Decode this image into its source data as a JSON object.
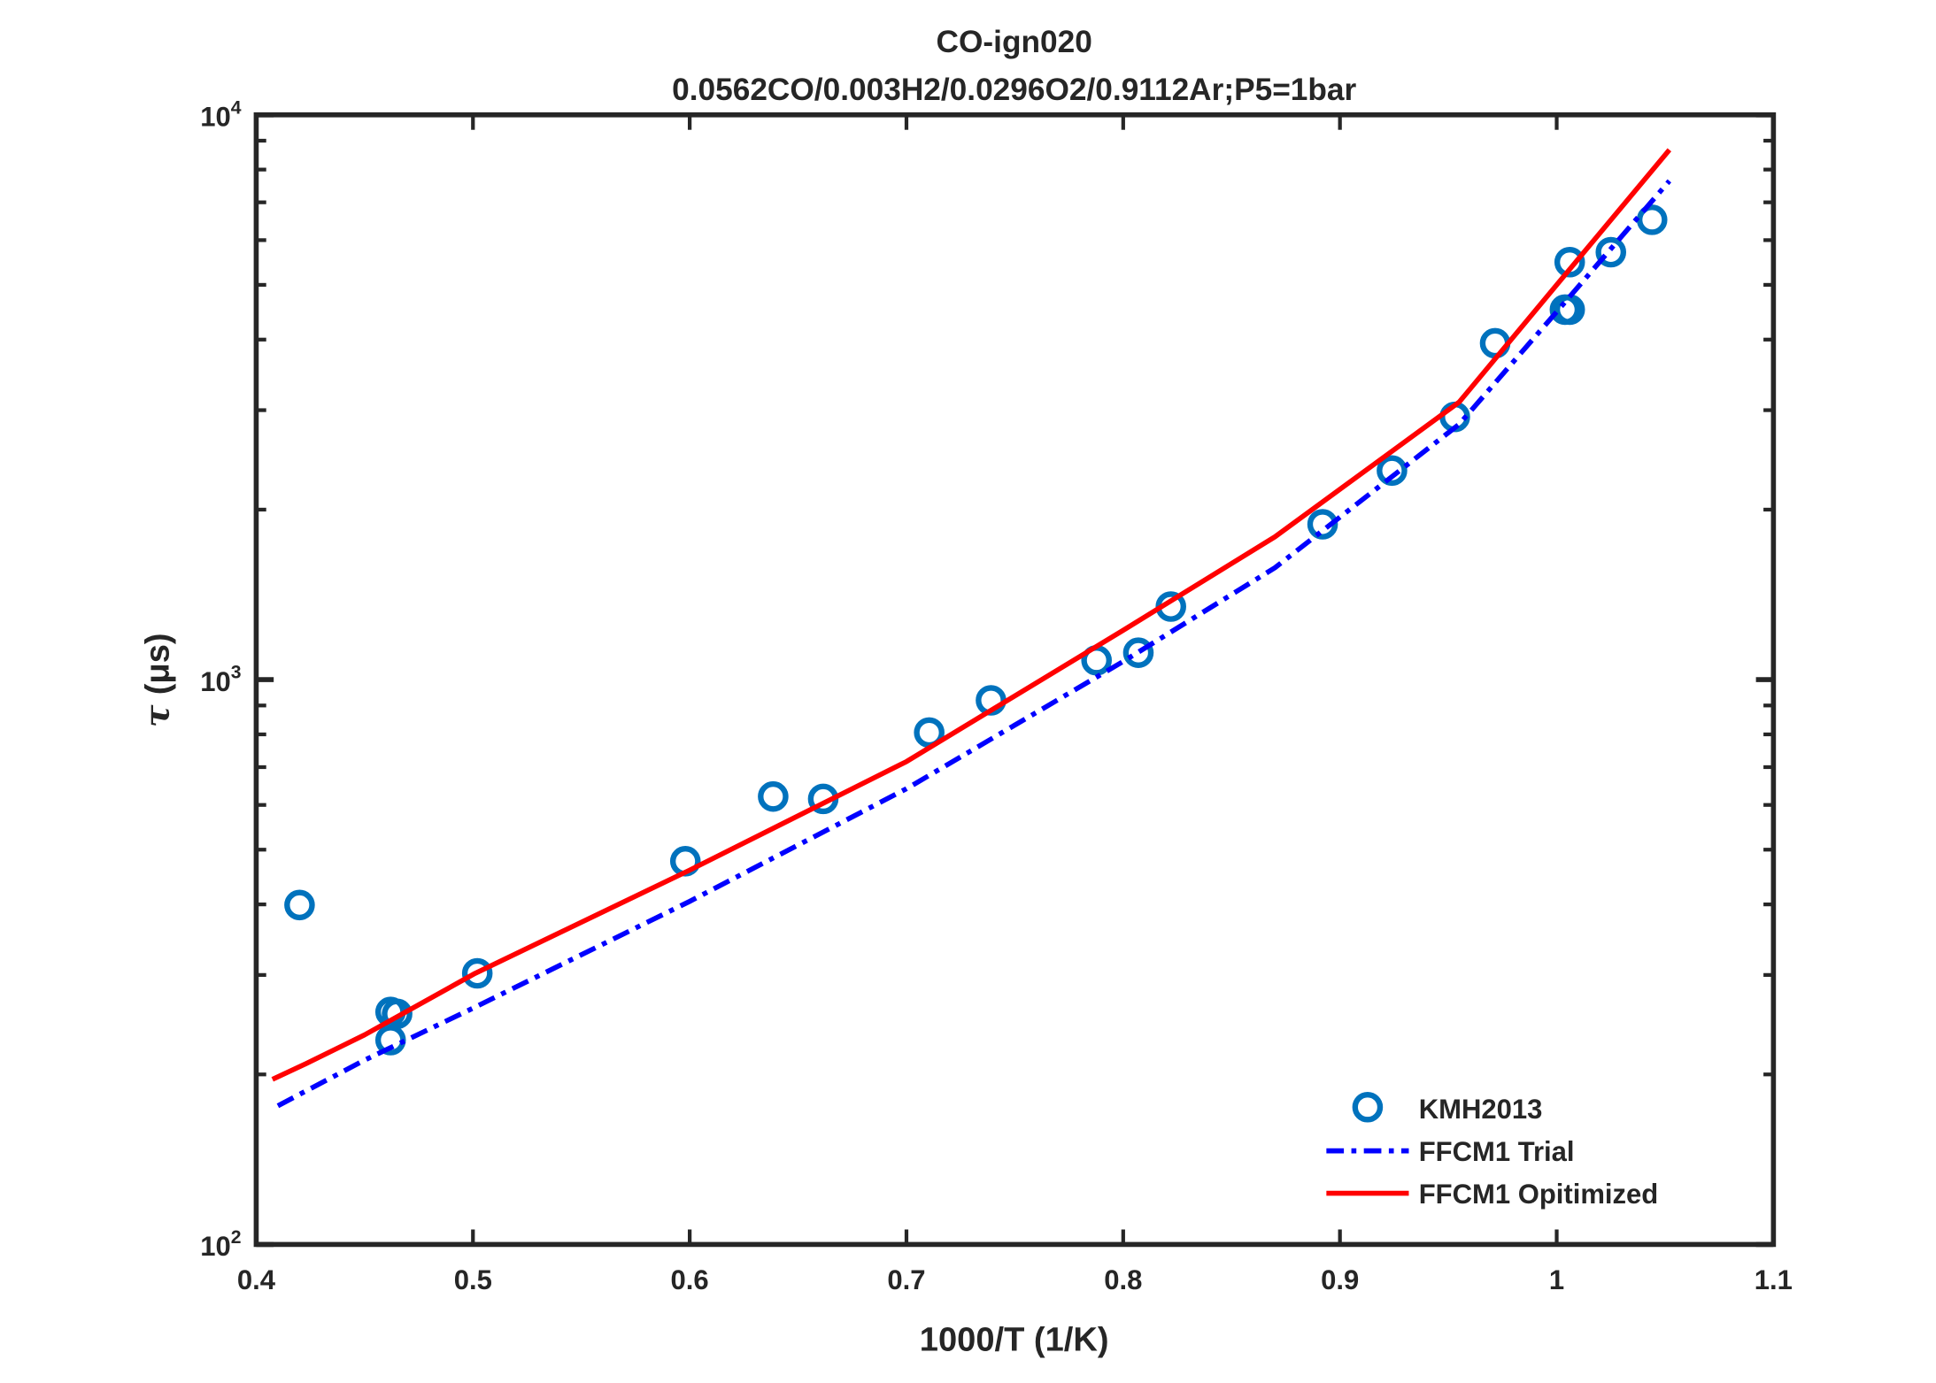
{
  "chart_data": {
    "type": "line",
    "title": "CO-ign020",
    "subtitle": "0.0562CO/0.003H2/0.0296O2/0.9112Ar;P5=1bar",
    "xlabel": "1000/T (1/K)",
    "ylabel_symbol": "τ",
    "ylabel_unit": "(μs)",
    "xlim": [
      0.4,
      1.1
    ],
    "ylim": [
      100,
      10000
    ],
    "yscale": "log",
    "grid": false,
    "legend_position": "bottom-right",
    "x_ticks": [
      "0.4",
      "0.5",
      "0.6",
      "0.7",
      "0.8",
      "0.9",
      "1",
      "1.1"
    ],
    "y_ticks": [
      {
        "base": "10",
        "exp": "2"
      },
      {
        "base": "10",
        "exp": "3"
      },
      {
        "base": "10",
        "exp": "4"
      }
    ],
    "series": [
      {
        "name": "KMH2013",
        "style": "markers",
        "color": "#0072BD",
        "x": [
          0.42,
          0.462,
          0.465,
          0.462,
          0.502,
          0.598,
          0.6385,
          0.6616,
          0.7105,
          0.739,
          0.7877,
          0.807,
          0.822,
          0.892,
          0.924,
          0.953,
          0.9716,
          1.0038,
          1.006,
          1.006,
          1.025,
          1.044
        ],
        "y": [
          399,
          258,
          256,
          230,
          302,
          477,
          621,
          615,
          806,
          919,
          1082,
          1116,
          1347,
          1884,
          2345,
          2919,
          3941,
          4520,
          4520,
          5485,
          5712,
          6520
        ]
      },
      {
        "name": "FFCM1 Trial",
        "style": "dash-dot",
        "color": "#0000FF",
        "x": [
          0.41,
          0.45,
          0.5,
          0.6,
          0.7,
          0.8,
          0.87,
          0.955,
          1.0,
          1.052
        ],
        "y": [
          176,
          212,
          262,
          405,
          641,
          1077,
          1578,
          2832,
          4480,
          7640
        ]
      },
      {
        "name": "FFCM1 Opitimized",
        "style": "solid",
        "color": "#FF0000",
        "x": [
          0.4075,
          0.423,
          0.45,
          0.501,
          0.6,
          0.7,
          0.8,
          0.87,
          0.955,
          1.0,
          1.052
        ],
        "y": [
          196,
          209,
          235,
          302,
          460,
          716,
          1223,
          1790,
          3100,
          5000,
          8670
        ]
      }
    ]
  }
}
